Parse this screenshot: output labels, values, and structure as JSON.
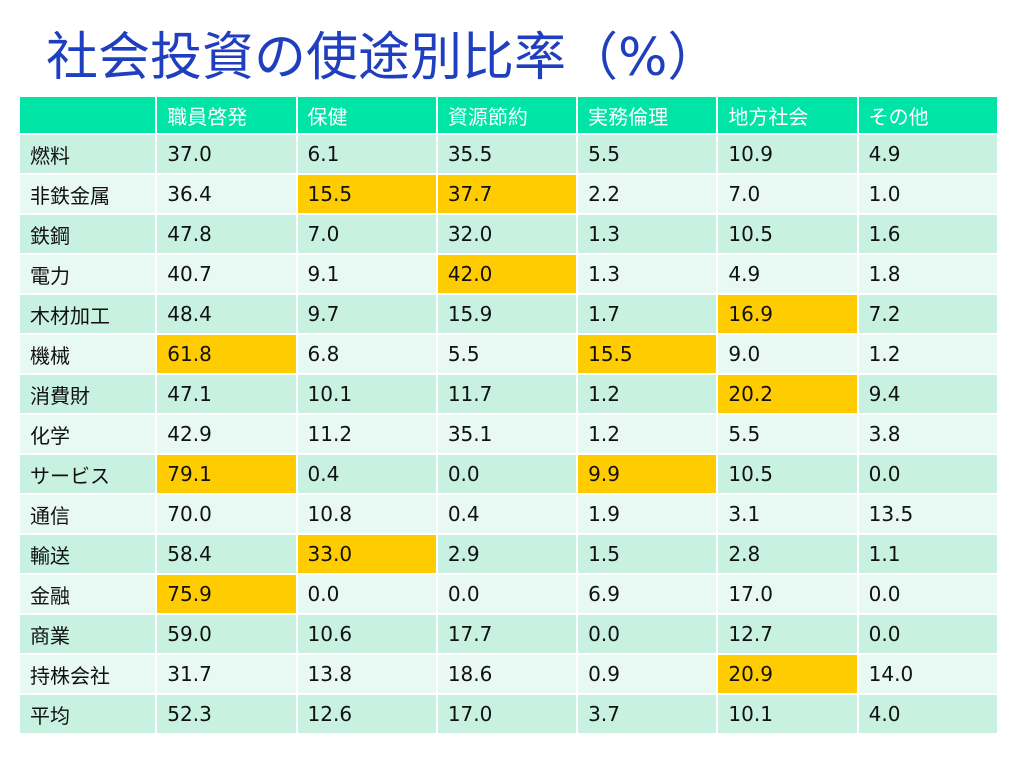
{
  "title": "社会投資の使途別比率（%）",
  "table": {
    "columns": [
      "",
      "職員啓発",
      "保健",
      "資源節約",
      "実務倫理",
      "地方社会",
      "その他"
    ],
    "rows": [
      {
        "label": "燃料",
        "values": [
          "37.0",
          "6.1",
          "35.5",
          "5.5",
          "10.9",
          "4.9"
        ],
        "highlight": []
      },
      {
        "label": "非鉄金属",
        "values": [
          "36.4",
          "15.5",
          "37.7",
          "2.2",
          "7.0",
          "1.0"
        ],
        "highlight": [
          1,
          2
        ]
      },
      {
        "label": "鉄鋼",
        "values": [
          "47.8",
          "7.0",
          "32.0",
          "1.3",
          "10.5",
          "1.6"
        ],
        "highlight": []
      },
      {
        "label": "電力",
        "values": [
          "40.7",
          "9.1",
          "42.0",
          "1.3",
          "4.9",
          "1.8"
        ],
        "highlight": [
          2
        ]
      },
      {
        "label": "木材加工",
        "values": [
          "48.4",
          "9.7",
          "15.9",
          "1.7",
          "16.9",
          "7.2"
        ],
        "highlight": [
          4
        ]
      },
      {
        "label": "機械",
        "values": [
          "61.8",
          "6.8",
          "5.5",
          "15.5",
          "9.0",
          "1.2"
        ],
        "highlight": [
          0,
          3
        ]
      },
      {
        "label": "消費財",
        "values": [
          "47.1",
          "10.1",
          "11.7",
          "1.2",
          "20.2",
          "9.4"
        ],
        "highlight": [
          4
        ]
      },
      {
        "label": "化学",
        "values": [
          "42.9",
          "11.2",
          "35.1",
          "1.2",
          "5.5",
          "3.8"
        ],
        "highlight": []
      },
      {
        "label": "サービス",
        "values": [
          "79.1",
          "0.4",
          "0.0",
          "9.9",
          "10.5",
          "0.0"
        ],
        "highlight": [
          0,
          3
        ]
      },
      {
        "label": "通信",
        "values": [
          "70.0",
          "10.8",
          "0.4",
          "1.9",
          "3.1",
          "13.5"
        ],
        "highlight": []
      },
      {
        "label": "輸送",
        "values": [
          "58.4",
          "33.0",
          "2.9",
          "1.5",
          "2.8",
          "1.1"
        ],
        "highlight": [
          1
        ]
      },
      {
        "label": "金融",
        "values": [
          "75.9",
          "0.0",
          "0.0",
          "6.9",
          "17.0",
          "0.0"
        ],
        "highlight": [
          0
        ]
      },
      {
        "label": "商業",
        "values": [
          "59.0",
          "10.6",
          "17.7",
          "0.0",
          "12.7",
          "0.0"
        ],
        "highlight": []
      },
      {
        "label": "持株会社",
        "values": [
          "31.7",
          "13.8",
          "18.6",
          "0.9",
          "20.9",
          "14.0"
        ],
        "highlight": [
          4
        ]
      },
      {
        "label": "平均",
        "values": [
          "52.3",
          "12.6",
          "17.0",
          "3.7",
          "10.1",
          "4.0"
        ],
        "highlight": []
      }
    ]
  },
  "colors": {
    "title": "#1f3fbf",
    "header_bg": "#00e4a6",
    "row_odd": "#c8f1e2",
    "row_even": "#e8f8f2",
    "highlight": "#ffcc00"
  }
}
